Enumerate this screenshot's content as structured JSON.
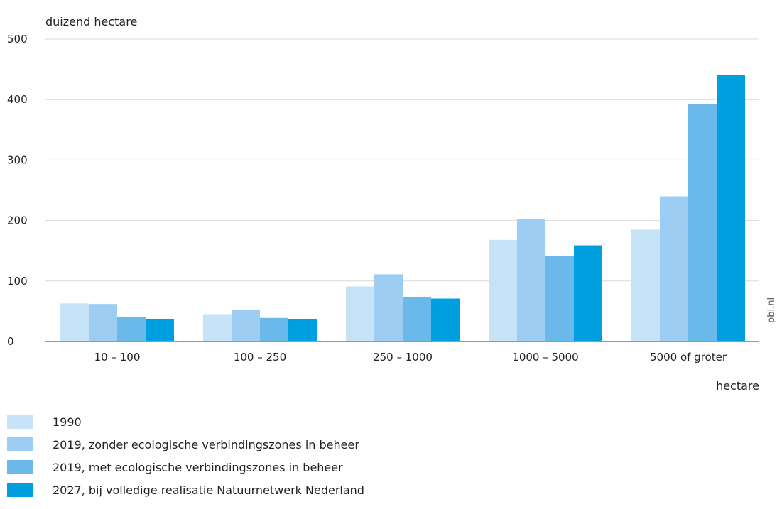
{
  "chart_data": {
    "type": "bar",
    "title": "",
    "ylabel": "duizend hectare",
    "xlabel": "hectare",
    "ylim": [
      0,
      500
    ],
    "yticks": [
      0,
      100,
      200,
      300,
      400,
      500
    ],
    "grid": true,
    "legend_position": "bottom-left",
    "categories": [
      "10 – 100",
      "100 – 250",
      "250 – 1000",
      "1000 – 5000",
      "5000 of groter"
    ],
    "series": [
      {
        "name": "1990",
        "color": "#c6e3f8",
        "values": [
          63,
          44,
          91,
          168,
          185
        ]
      },
      {
        "name": "2019, zonder ecologische verbindingszones in beheer",
        "color": "#9dcdf2",
        "values": [
          62,
          52,
          111,
          202,
          240
        ]
      },
      {
        "name": "2019, met ecologische verbindingszones in beheer",
        "color": "#6ab9ea",
        "values": [
          41,
          39,
          74,
          141,
          393
        ]
      },
      {
        "name": "2027, bij volledige realisatie Natuurnetwerk Nederland",
        "color": "#009fdf",
        "values": [
          37,
          37,
          71,
          159,
          441
        ]
      }
    ],
    "source_note": "pbl.nl"
  }
}
